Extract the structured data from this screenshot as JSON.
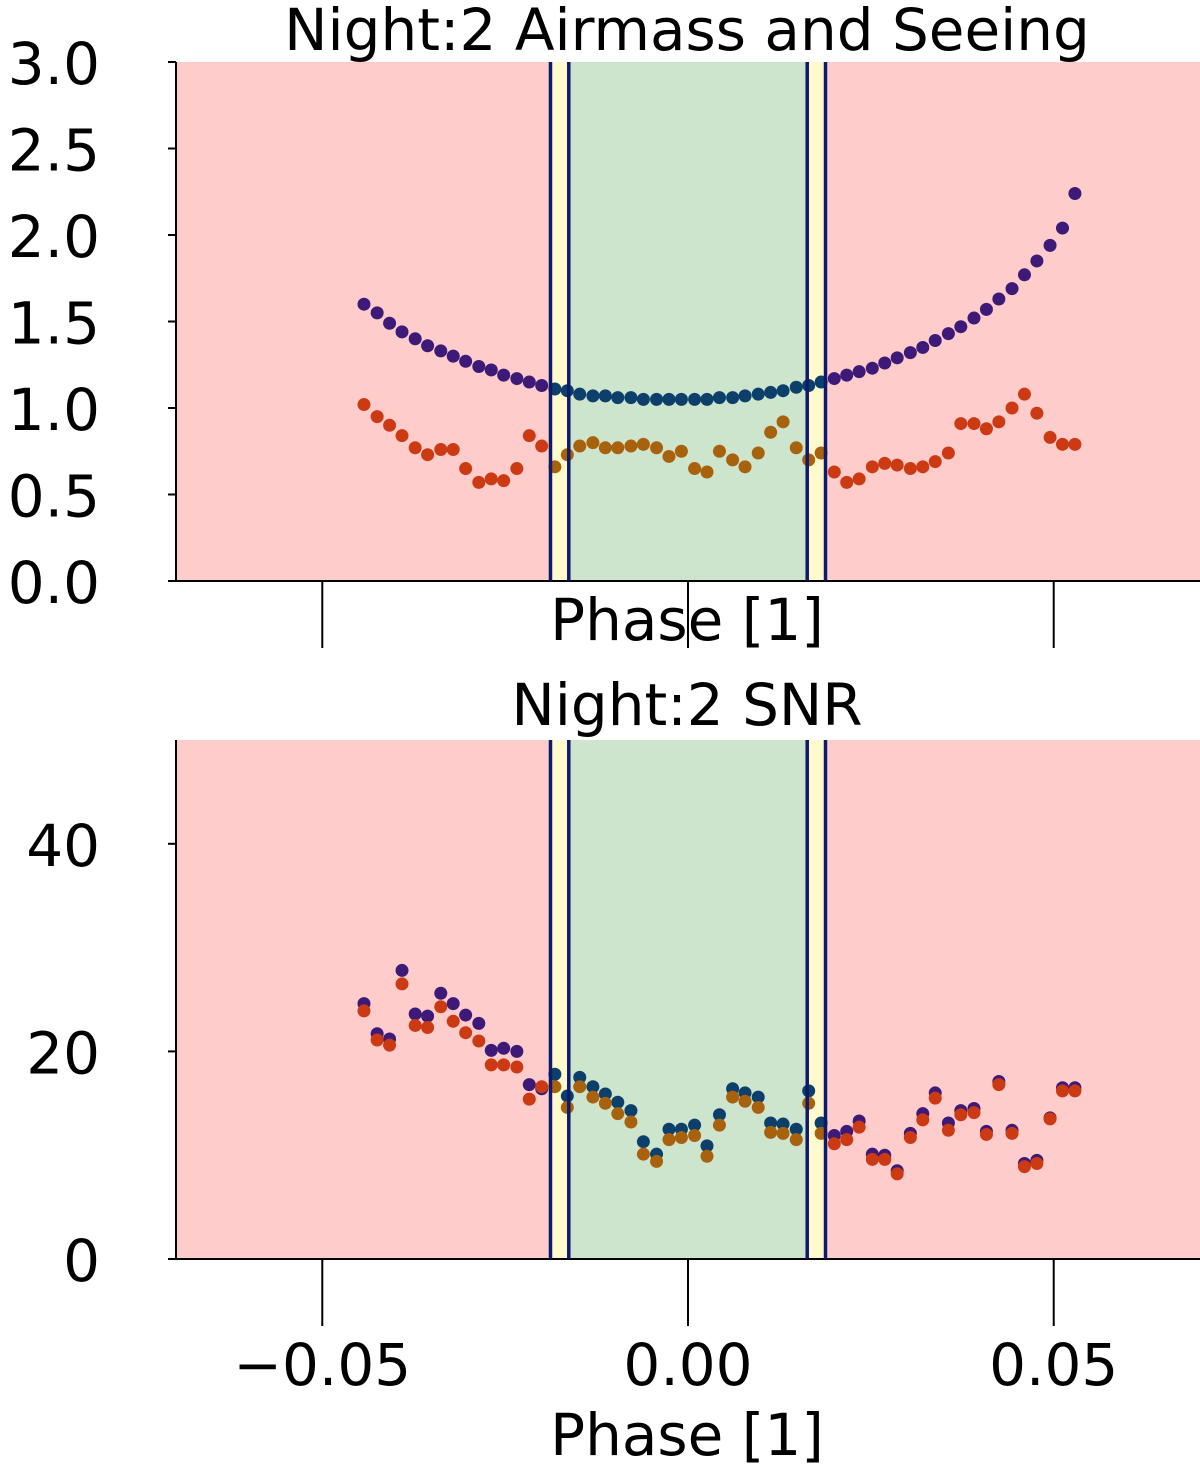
{
  "chart_data": [
    {
      "type": "scatter",
      "title": "Night:2 Airmass and Seeing",
      "xlabel": "Phase [1]",
      "ylabel": "",
      "xlim": [
        -0.07,
        0.07
      ],
      "ylim": [
        0,
        3
      ],
      "yticks": [
        "0.0",
        "0.5",
        "1.0",
        "1.5",
        "2.0",
        "2.5",
        "3.0"
      ],
      "ytick_values": [
        0,
        0.5,
        1.0,
        1.5,
        2.0,
        2.5,
        3.0
      ],
      "xtick_values": [
        -0.05,
        0.0,
        0.05
      ],
      "xticklabels_visible": false,
      "grid": false,
      "background_color": "#ffcccc",
      "regions": [
        {
          "x0": -0.0188,
          "x1": -0.0163,
          "color": "#fffacd"
        },
        {
          "x0": -0.0163,
          "x1": 0.0163,
          "color": "#cce5cc"
        },
        {
          "x0": 0.0163,
          "x1": 0.0188,
          "color": "#fffacd"
        }
      ],
      "vlines": [
        -0.0188,
        -0.0163,
        0.0163,
        0.0188
      ],
      "vline_color": "#0d1a6b",
      "series": [
        {
          "color": "#3d1a78",
          "color_in_window": "#0d3f6b",
          "x": [
            -0.0443,
            -0.0425,
            -0.0408,
            -0.0391,
            -0.0373,
            -0.0356,
            -0.0338,
            -0.0321,
            -0.0304,
            -0.0286,
            -0.0269,
            -0.0252,
            -0.0234,
            -0.0217,
            -0.02,
            -0.0182,
            -0.0165,
            -0.0148,
            -0.013,
            -0.0113,
            -0.0096,
            -0.0078,
            -0.0061,
            -0.0043,
            -0.0026,
            -0.0009,
            0.0009,
            0.0026,
            0.0043,
            0.0061,
            0.0078,
            0.0096,
            0.0113,
            0.013,
            0.0148,
            0.0165,
            0.0182,
            0.02,
            0.0217,
            0.0234,
            0.0252,
            0.0269,
            0.0286,
            0.0304,
            0.0321,
            0.0338,
            0.0356,
            0.0373,
            0.0391,
            0.0408,
            0.0425,
            0.0443,
            0.046,
            0.0477,
            0.0495,
            0.0512,
            0.0529
          ],
          "y": [
            1.6,
            1.55,
            1.49,
            1.44,
            1.4,
            1.36,
            1.33,
            1.3,
            1.27,
            1.24,
            1.22,
            1.19,
            1.17,
            1.15,
            1.13,
            1.11,
            1.1,
            1.08,
            1.07,
            1.07,
            1.06,
            1.06,
            1.05,
            1.05,
            1.05,
            1.05,
            1.05,
            1.05,
            1.06,
            1.06,
            1.07,
            1.08,
            1.09,
            1.1,
            1.12,
            1.13,
            1.15,
            1.17,
            1.19,
            1.21,
            1.23,
            1.26,
            1.29,
            1.32,
            1.35,
            1.39,
            1.43,
            1.47,
            1.52,
            1.57,
            1.63,
            1.69,
            1.77,
            1.85,
            1.94,
            2.04,
            2.24
          ]
        },
        {
          "color": "#cc3a14",
          "color_in_window": "#a8620e",
          "x": [
            -0.0443,
            -0.0425,
            -0.0408,
            -0.0391,
            -0.0373,
            -0.0356,
            -0.0338,
            -0.0321,
            -0.0304,
            -0.0286,
            -0.0269,
            -0.0252,
            -0.0234,
            -0.0217,
            -0.02,
            -0.0182,
            -0.0165,
            -0.0148,
            -0.013,
            -0.0113,
            -0.0096,
            -0.0078,
            -0.0061,
            -0.0043,
            -0.0026,
            -0.0009,
            0.0009,
            0.0026,
            0.0043,
            0.0061,
            0.0078,
            0.0096,
            0.0113,
            0.013,
            0.0148,
            0.0165,
            0.0182,
            0.02,
            0.0217,
            0.0234,
            0.0252,
            0.0269,
            0.0286,
            0.0304,
            0.0321,
            0.0338,
            0.0356,
            0.0373,
            0.0391,
            0.0408,
            0.0425,
            0.0443,
            0.046,
            0.0477,
            0.0495,
            0.0512,
            0.0529
          ],
          "y": [
            1.02,
            0.95,
            0.9,
            0.84,
            0.77,
            0.73,
            0.76,
            0.76,
            0.65,
            0.57,
            0.59,
            0.58,
            0.65,
            0.84,
            0.78,
            0.66,
            0.73,
            0.78,
            0.8,
            0.77,
            0.77,
            0.78,
            0.79,
            0.77,
            0.72,
            0.75,
            0.65,
            0.63,
            0.75,
            0.7,
            0.66,
            0.74,
            0.86,
            0.92,
            0.77,
            0.7,
            0.74,
            0.63,
            0.57,
            0.59,
            0.66,
            0.68,
            0.67,
            0.65,
            0.66,
            0.69,
            0.74,
            0.91,
            0.91,
            0.88,
            0.92,
            1.0,
            1.08,
            0.97,
            0.83,
            0.79,
            0.79
          ]
        }
      ]
    },
    {
      "type": "scatter",
      "title": "Night:2 SNR",
      "xlabel": "Phase [1]",
      "ylabel": "",
      "xlim": [
        -0.07,
        0.07
      ],
      "ylim": [
        0,
        50
      ],
      "yticks": [
        "0",
        "20",
        "40"
      ],
      "ytick_values": [
        0,
        20,
        40
      ],
      "xticks": [
        "−0.05",
        "0.00",
        "0.05"
      ],
      "xtick_values": [
        -0.05,
        0.0,
        0.05
      ],
      "grid": false,
      "background_color": "#ffcccc",
      "regions": [
        {
          "x0": -0.0188,
          "x1": -0.0163,
          "color": "#fffacd"
        },
        {
          "x0": -0.0163,
          "x1": 0.0163,
          "color": "#cce5cc"
        },
        {
          "x0": 0.0163,
          "x1": 0.0188,
          "color": "#fffacd"
        }
      ],
      "vlines": [
        -0.0188,
        -0.0163,
        0.0163,
        0.0188
      ],
      "vline_color": "#0d1a6b",
      "series": [
        {
          "color": "#3d1a78",
          "color_in_window": "#0d3f6b",
          "x": [
            -0.0443,
            -0.0425,
            -0.0408,
            -0.0391,
            -0.0373,
            -0.0356,
            -0.0338,
            -0.0321,
            -0.0304,
            -0.0286,
            -0.0269,
            -0.0252,
            -0.0234,
            -0.0217,
            -0.02,
            -0.0182,
            -0.0165,
            -0.0148,
            -0.013,
            -0.0113,
            -0.0096,
            -0.0078,
            -0.0061,
            -0.0043,
            -0.0026,
            -0.0009,
            0.0009,
            0.0026,
            0.0043,
            0.0061,
            0.0078,
            0.0096,
            0.0113,
            0.013,
            0.0148,
            0.0165,
            0.0182,
            0.02,
            0.0217,
            0.0234,
            0.0252,
            0.0269,
            0.0286,
            0.0304,
            0.0321,
            0.0338,
            0.0356,
            0.0373,
            0.0391,
            0.0408,
            0.0425,
            0.0443,
            0.046,
            0.0477,
            0.0495,
            0.0512,
            0.0529
          ],
          "y": [
            24.6,
            21.7,
            21.2,
            27.8,
            23.6,
            23.4,
            25.6,
            24.6,
            23.5,
            22.7,
            20.1,
            20.3,
            20.0,
            16.8,
            16.4,
            17.8,
            15.7,
            17.5,
            16.6,
            15.9,
            15.1,
            14.3,
            11.3,
            10.1,
            12.5,
            12.5,
            12.9,
            10.9,
            13.9,
            16.4,
            16.0,
            15.6,
            13.1,
            13.0,
            12.5,
            16.2,
            13.1,
            11.9,
            12.3,
            13.3,
            10.1,
            10.0,
            8.5,
            12.1,
            14.0,
            16.0,
            13.1,
            14.3,
            14.5,
            12.3,
            17.1,
            12.4,
            9.2,
            9.5,
            13.6,
            16.5,
            16.5
          ]
        },
        {
          "color": "#cc3a14",
          "color_in_window": "#a8620e",
          "x": [
            -0.0443,
            -0.0425,
            -0.0408,
            -0.0391,
            -0.0373,
            -0.0356,
            -0.0338,
            -0.0321,
            -0.0304,
            -0.0286,
            -0.0269,
            -0.0252,
            -0.0234,
            -0.0217,
            -0.02,
            -0.0182,
            -0.0165,
            -0.0148,
            -0.013,
            -0.0113,
            -0.0096,
            -0.0078,
            -0.0061,
            -0.0043,
            -0.0026,
            -0.0009,
            0.0009,
            0.0026,
            0.0043,
            0.0061,
            0.0078,
            0.0096,
            0.0113,
            0.013,
            0.0148,
            0.0165,
            0.0182,
            0.02,
            0.0217,
            0.0234,
            0.0252,
            0.0269,
            0.0286,
            0.0304,
            0.0321,
            0.0338,
            0.0356,
            0.0373,
            0.0391,
            0.0408,
            0.0425,
            0.0443,
            0.046,
            0.0477,
            0.0495,
            0.0512,
            0.0529
          ],
          "y": [
            23.9,
            21.1,
            20.6,
            26.5,
            22.5,
            22.3,
            24.3,
            22.9,
            21.8,
            21.0,
            18.7,
            18.7,
            18.5,
            15.4,
            16.6,
            16.6,
            14.6,
            16.6,
            15.6,
            15.0,
            14.0,
            13.2,
            10.1,
            9.4,
            11.5,
            11.7,
            11.9,
            9.9,
            12.9,
            15.6,
            15.2,
            14.6,
            12.2,
            12.1,
            11.5,
            15.0,
            12.1,
            11.1,
            11.5,
            12.7,
            9.6,
            9.6,
            8.2,
            11.7,
            13.4,
            15.5,
            12.4,
            13.9,
            14.1,
            12.0,
            16.8,
            12.1,
            8.9,
            9.2,
            13.5,
            16.2,
            16.2
          ]
        }
      ]
    }
  ]
}
